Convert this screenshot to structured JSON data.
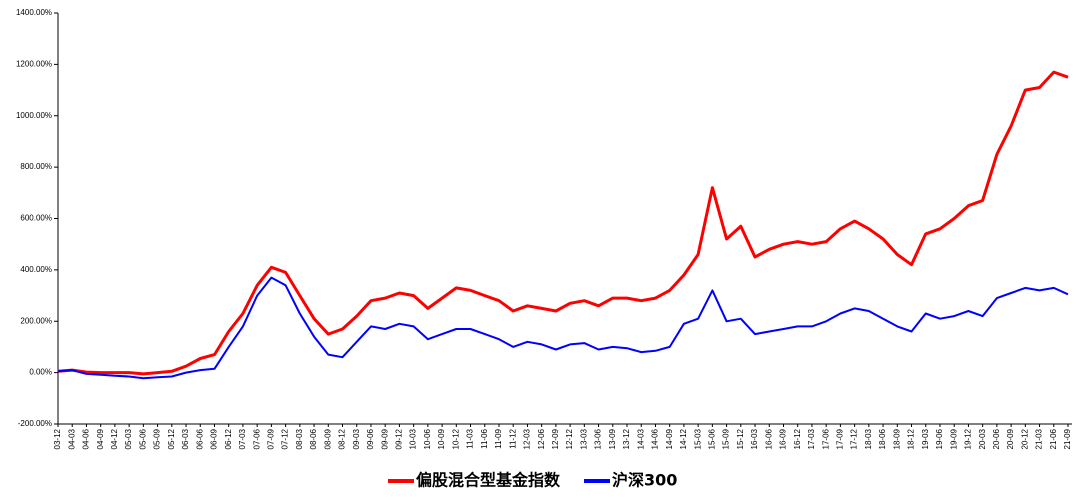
{
  "chart_data": {
    "type": "line",
    "categories": [
      "03-12",
      "04-03",
      "04-06",
      "04-09",
      "04-12",
      "05-03",
      "05-06",
      "05-09",
      "05-12",
      "06-03",
      "06-06",
      "06-09",
      "06-12",
      "07-03",
      "07-06",
      "07-09",
      "07-12",
      "08-03",
      "08-06",
      "08-09",
      "08-12",
      "09-03",
      "09-06",
      "09-09",
      "09-12",
      "10-03",
      "10-06",
      "10-09",
      "10-12",
      "11-03",
      "11-06",
      "11-09",
      "11-12",
      "12-03",
      "12-06",
      "12-09",
      "12-12",
      "13-03",
      "13-06",
      "13-09",
      "13-12",
      "14-03",
      "14-06",
      "14-09",
      "14-12",
      "15-03",
      "15-06",
      "15-09",
      "15-12",
      "16-03",
      "16-06",
      "16-09",
      "16-12",
      "17-03",
      "17-06",
      "17-09",
      "17-12",
      "18-03",
      "18-06",
      "18-09",
      "18-12",
      "19-03",
      "19-06",
      "19-09",
      "19-12",
      "20-03",
      "20-06",
      "20-09",
      "20-12",
      "21-03",
      "21-06",
      "21-09"
    ],
    "series": [
      {
        "name": "偏股混合型基金指数",
        "color": "#ff0000",
        "values": [
          5,
          10,
          2,
          0,
          0,
          0,
          -5,
          0,
          5,
          25,
          55,
          70,
          160,
          230,
          340,
          410,
          390,
          300,
          210,
          150,
          170,
          220,
          280,
          290,
          310,
          300,
          250,
          290,
          330,
          320,
          300,
          280,
          240,
          260,
          250,
          240,
          270,
          280,
          260,
          290,
          290,
          280,
          290,
          320,
          380,
          460,
          720,
          520,
          570,
          450,
          480,
          500,
          510,
          500,
          510,
          560,
          590,
          560,
          520,
          460,
          420,
          540,
          560,
          600,
          650,
          670,
          850,
          960,
          1100,
          1110,
          1170,
          1150
        ]
      },
      {
        "name": "沪深300",
        "color": "#0000ff",
        "values": [
          5,
          10,
          -5,
          -8,
          -12,
          -15,
          -22,
          -18,
          -15,
          0,
          10,
          15,
          100,
          180,
          300,
          370,
          340,
          230,
          140,
          70,
          60,
          120,
          180,
          170,
          190,
          180,
          130,
          150,
          170,
          170,
          150,
          130,
          100,
          120,
          110,
          90,
          110,
          115,
          90,
          100,
          95,
          80,
          85,
          100,
          190,
          210,
          320,
          200,
          210,
          150,
          160,
          170,
          180,
          180,
          200,
          230,
          250,
          240,
          210,
          180,
          160,
          230,
          210,
          220,
          240,
          220,
          290,
          310,
          330,
          320,
          330,
          305
        ]
      }
    ],
    "ylim": [
      -200,
      1400
    ],
    "yticks": [
      {
        "value": -200,
        "label": "-200.00%"
      },
      {
        "value": 0,
        "label": "0.00%"
      },
      {
        "value": 200,
        "label": "200.00%"
      },
      {
        "value": 400,
        "label": "400.00%"
      },
      {
        "value": 600,
        "label": "600.00%"
      },
      {
        "value": 800,
        "label": "800.00%"
      },
      {
        "value": 1000,
        "label": "1000.00%"
      },
      {
        "value": 1200,
        "label": "1200.00%"
      },
      {
        "value": 1400,
        "label": "1400.00%"
      }
    ],
    "grid": false,
    "legend": "bottom"
  }
}
